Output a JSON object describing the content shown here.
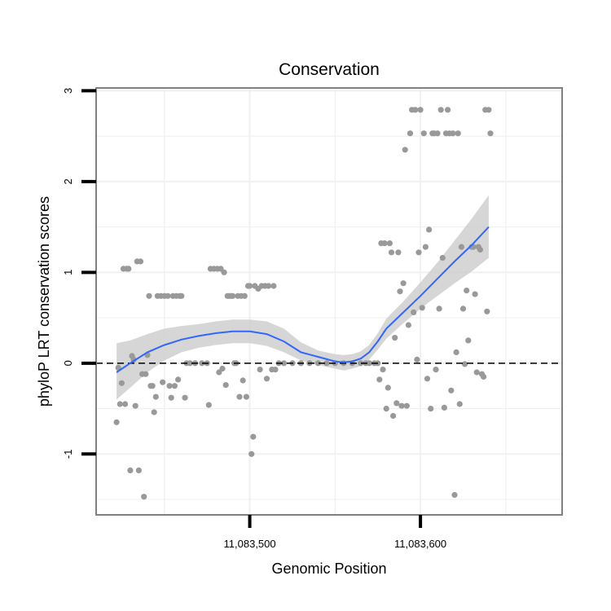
{
  "chart_data": {
    "type": "scatter",
    "title": "Conservation",
    "xlabel": "Genomic Position",
    "ylabel": "phyloP LRT conservation scores",
    "xlim": [
      11083410,
      11083683
    ],
    "ylim": [
      -1.67,
      3.03
    ],
    "x_ticks": [
      {
        "value": 11083500,
        "label": "11,083,500"
      },
      {
        "value": 11083600,
        "label": "11,083,600"
      }
    ],
    "y_ticks": [
      {
        "value": -1,
        "label": "-1"
      },
      {
        "value": 0,
        "label": "0"
      },
      {
        "value": 1,
        "label": "1"
      },
      {
        "value": 2,
        "label": "2"
      },
      {
        "value": 3,
        "label": "3"
      }
    ],
    "grid": true,
    "reference_line": {
      "y": 0,
      "style": "dashed"
    },
    "colors": {
      "points": "#999999",
      "smooth_line": "#3366ff",
      "confidence_band": "#cccccc",
      "panel_border": "#808080"
    },
    "points": [
      [
        11083422,
        -0.65
      ],
      [
        11083423,
        -0.05
      ],
      [
        11083424,
        -0.45
      ],
      [
        11083425,
        -0.22
      ],
      [
        11083426,
        1.04
      ],
      [
        11083427,
        -0.45
      ],
      [
        11083428,
        1.04
      ],
      [
        11083429,
        1.04
      ],
      [
        11083430,
        -1.18
      ],
      [
        11083431,
        0.08
      ],
      [
        11083432,
        0.04
      ],
      [
        11083433,
        -0.47
      ],
      [
        11083434,
        1.12
      ],
      [
        11083435,
        -1.18
      ],
      [
        11083436,
        1.12
      ],
      [
        11083437,
        -0.12
      ],
      [
        11083438,
        -1.47
      ],
      [
        11083439,
        -0.12
      ],
      [
        11083440,
        0.09
      ],
      [
        11083441,
        0.74
      ],
      [
        11083442,
        -0.25
      ],
      [
        11083443,
        -0.25
      ],
      [
        11083444,
        -0.54
      ],
      [
        11083445,
        -0.37
      ],
      [
        11083446,
        0.74
      ],
      [
        11083448,
        0.74
      ],
      [
        11083449,
        -0.21
      ],
      [
        11083450,
        0.74
      ],
      [
        11083452,
        0.74
      ],
      [
        11083453,
        -0.25
      ],
      [
        11083454,
        -0.38
      ],
      [
        11083455,
        0.74
      ],
      [
        11083456,
        -0.25
      ],
      [
        11083457,
        0.74
      ],
      [
        11083458,
        -0.18
      ],
      [
        11083459,
        0.74
      ],
      [
        11083460,
        0.74
      ],
      [
        11083462,
        -0.38
      ],
      [
        11083463,
        0.0
      ],
      [
        11083465,
        0.0
      ],
      [
        11083468,
        0.0
      ],
      [
        11083472,
        0.0
      ],
      [
        11083475,
        0.0
      ],
      [
        11083476,
        -0.46
      ],
      [
        11083477,
        1.04
      ],
      [
        11083479,
        1.04
      ],
      [
        11083481,
        1.04
      ],
      [
        11083482,
        -0.1
      ],
      [
        11083483,
        1.04
      ],
      [
        11083484,
        -0.06
      ],
      [
        11083485,
        1.0
      ],
      [
        11083486,
        -0.24
      ],
      [
        11083487,
        0.74
      ],
      [
        11083488,
        0.74
      ],
      [
        11083489,
        0.74
      ],
      [
        11083490,
        0.74
      ],
      [
        11083491,
        0.0
      ],
      [
        11083492,
        0.0
      ],
      [
        11083493,
        0.74
      ],
      [
        11083494,
        -0.37
      ],
      [
        11083495,
        0.74
      ],
      [
        11083496,
        -0.19
      ],
      [
        11083497,
        0.74
      ],
      [
        11083498,
        -0.37
      ],
      [
        11083499,
        0.85
      ],
      [
        11083500,
        0.85
      ],
      [
        11083501,
        -1.0
      ],
      [
        11083502,
        -0.81
      ],
      [
        11083503,
        0.85
      ],
      [
        11083505,
        0.82
      ],
      [
        11083506,
        -0.07
      ],
      [
        11083507,
        0.85
      ],
      [
        11083509,
        0.85
      ],
      [
        11083510,
        -0.17
      ],
      [
        11083511,
        0.85
      ],
      [
        11083513,
        -0.07
      ],
      [
        11083514,
        0.85
      ],
      [
        11083515,
        -0.07
      ],
      [
        11083517,
        0.0
      ],
      [
        11083520,
        0.0
      ],
      [
        11083525,
        0.0
      ],
      [
        11083530,
        0.0
      ],
      [
        11083535,
        0.0
      ],
      [
        11083540,
        0.0
      ],
      [
        11083545,
        0.0
      ],
      [
        11083550,
        0.0
      ],
      [
        11083555,
        0.0
      ],
      [
        11083560,
        0.0
      ],
      [
        11083565,
        0.0
      ],
      [
        11083568,
        0.0
      ],
      [
        11083570,
        0.0
      ],
      [
        11083573,
        0.0
      ],
      [
        11083575,
        0.0
      ],
      [
        11083576,
        -0.18
      ],
      [
        11083577,
        1.32
      ],
      [
        11083578,
        -0.07
      ],
      [
        11083579,
        1.32
      ],
      [
        11083580,
        -0.5
      ],
      [
        11083581,
        -0.27
      ],
      [
        11083582,
        1.32
      ],
      [
        11083583,
        1.22
      ],
      [
        11083584,
        -0.58
      ],
      [
        11083585,
        0.28
      ],
      [
        11083586,
        -0.44
      ],
      [
        11083587,
        1.22
      ],
      [
        11083588,
        0.79
      ],
      [
        11083589,
        -0.47
      ],
      [
        11083590,
        0.88
      ],
      [
        11083591,
        2.35
      ],
      [
        11083592,
        -0.47
      ],
      [
        11083593,
        0.42
      ],
      [
        11083594,
        2.53
      ],
      [
        11083595,
        2.79
      ],
      [
        11083596,
        0.56
      ],
      [
        11083597,
        2.79
      ],
      [
        11083598,
        0.04
      ],
      [
        11083599,
        1.22
      ],
      [
        11083600,
        2.79
      ],
      [
        11083601,
        0.61
      ],
      [
        11083602,
        2.53
      ],
      [
        11083603,
        1.28
      ],
      [
        11083604,
        -0.17
      ],
      [
        11083605,
        1.47
      ],
      [
        11083606,
        -0.5
      ],
      [
        11083607,
        2.53
      ],
      [
        11083608,
        2.53
      ],
      [
        11083609,
        -0.07
      ],
      [
        11083610,
        2.53
      ],
      [
        11083611,
        0.6
      ],
      [
        11083612,
        2.79
      ],
      [
        11083613,
        1.16
      ],
      [
        11083614,
        -0.49
      ],
      [
        11083615,
        2.53
      ],
      [
        11083616,
        2.79
      ],
      [
        11083617,
        2.53
      ],
      [
        11083618,
        -0.3
      ],
      [
        11083619,
        2.53
      ],
      [
        11083620,
        -1.45
      ],
      [
        11083621,
        0.12
      ],
      [
        11083622,
        2.53
      ],
      [
        11083623,
        -0.45
      ],
      [
        11083624,
        1.28
      ],
      [
        11083625,
        0.6
      ],
      [
        11083626,
        -0.01
      ],
      [
        11083627,
        0.8
      ],
      [
        11083628,
        0.25
      ],
      [
        11083630,
        1.28
      ],
      [
        11083631,
        1.28
      ],
      [
        11083632,
        0.76
      ],
      [
        11083633,
        -0.1
      ],
      [
        11083634,
        1.28
      ],
      [
        11083635,
        1.25
      ],
      [
        11083636,
        -0.12
      ],
      [
        11083637,
        -0.15
      ],
      [
        11083638,
        2.79
      ],
      [
        11083639,
        0.57
      ],
      [
        11083640,
        2.79
      ],
      [
        11083641,
        2.53
      ]
    ],
    "smooth": {
      "x": [
        11083422,
        11083430,
        11083440,
        11083450,
        11083460,
        11083470,
        11083480,
        11083490,
        11083500,
        11083510,
        11083520,
        11083530,
        11083540,
        11083550,
        11083555,
        11083560,
        11083565,
        11083570,
        11083575,
        11083580,
        11083590,
        11083600,
        11083610,
        11083620,
        11083630,
        11083640
      ],
      "y": [
        -0.1,
        0.0,
        0.12,
        0.2,
        0.26,
        0.3,
        0.33,
        0.35,
        0.35,
        0.32,
        0.24,
        0.12,
        0.07,
        0.02,
        0.01,
        0.02,
        0.05,
        0.12,
        0.24,
        0.38,
        0.56,
        0.74,
        0.93,
        1.12,
        1.3,
        1.5
      ],
      "lower": [
        -0.4,
        -0.27,
        -0.1,
        0.03,
        0.12,
        0.17,
        0.2,
        0.22,
        0.22,
        0.19,
        0.12,
        0.03,
        -0.02,
        -0.06,
        -0.08,
        -0.06,
        -0.03,
        0.04,
        0.15,
        0.27,
        0.44,
        0.6,
        0.74,
        0.88,
        1.01,
        1.16
      ],
      "upper": [
        0.22,
        0.25,
        0.32,
        0.38,
        0.41,
        0.43,
        0.46,
        0.48,
        0.48,
        0.46,
        0.38,
        0.23,
        0.14,
        0.1,
        0.09,
        0.1,
        0.13,
        0.2,
        0.33,
        0.49,
        0.68,
        0.89,
        1.11,
        1.35,
        1.59,
        1.85
      ]
    }
  }
}
